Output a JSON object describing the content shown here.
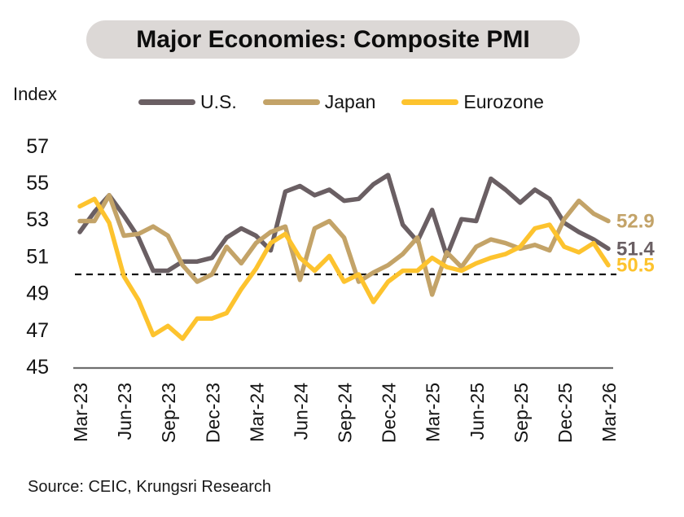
{
  "title": "Major Economies: Composite PMI",
  "y_axis_title": "Index",
  "source": "Source: CEIC, Krungsri Research",
  "colors": {
    "pill_bg": "#dcd8d6",
    "axis_line": "#6f6f6f",
    "threshold_line": "#141414",
    "text": "#141414",
    "us": "#6A5F63",
    "japan": "#C3A368",
    "eurozone": "#FDC32E"
  },
  "chart_data": {
    "type": "line",
    "title": "Major Economies: Composite PMI",
    "x": [
      "Mar-23",
      "Apr-23",
      "May-23",
      "Jun-23",
      "Jul-23",
      "Aug-23",
      "Sep-23",
      "Oct-23",
      "Nov-23",
      "Dec-23",
      "Jan-24",
      "Feb-24",
      "Mar-24",
      "Apr-24",
      "May-24",
      "Jun-24",
      "Jul-24",
      "Aug-24",
      "Sep-24",
      "Oct-24",
      "Nov-24",
      "Dec-24",
      "Jan-25",
      "Feb-25",
      "Mar-25",
      "Apr-25",
      "May-25",
      "Jun-25",
      "Jul-25",
      "Aug-25",
      "Sep-25",
      "Oct-25",
      "Nov-25",
      "Dec-25",
      "Jan-26",
      "Feb-26",
      "Mar-26"
    ],
    "x_tick_step": 3,
    "y_ticks": [
      57,
      55,
      53,
      51,
      49,
      47,
      45
    ],
    "ylim": [
      45,
      57.5
    ],
    "threshold_line": 50,
    "grid": false,
    "legend_position": "top",
    "series": [
      {
        "key": "us",
        "name": "U.S.",
        "color": "#6A5F63",
        "end_label": "51.4",
        "values": [
          52.3,
          53.4,
          54.3,
          53.2,
          52.0,
          50.2,
          50.2,
          50.7,
          50.7,
          50.9,
          52.0,
          52.5,
          52.1,
          51.3,
          54.5,
          54.8,
          54.3,
          54.6,
          54.0,
          54.1,
          54.9,
          55.4,
          52.7,
          51.8,
          53.5,
          51.0,
          53.0,
          52.9,
          55.2,
          54.6,
          53.9,
          54.6,
          54.1,
          52.8,
          52.3,
          51.9,
          51.4
        ]
      },
      {
        "key": "japan",
        "name": "Japan",
        "color": "#C3A368",
        "end_label": "52.9",
        "values": [
          52.9,
          52.9,
          54.3,
          52.1,
          52.2,
          52.6,
          52.1,
          50.5,
          49.6,
          50.0,
          51.5,
          50.6,
          51.7,
          52.3,
          52.6,
          49.7,
          52.5,
          52.9,
          52.0,
          49.6,
          50.1,
          50.5,
          51.1,
          52.0,
          48.9,
          51.2,
          50.4,
          51.5,
          51.9,
          51.7,
          51.4,
          51.6,
          51.3,
          53.0,
          54.0,
          53.3,
          52.9
        ]
      },
      {
        "key": "eurozone",
        "name": "Eurozone",
        "color": "#FDC32E",
        "end_label": "50.5",
        "values": [
          53.7,
          54.1,
          52.8,
          49.9,
          48.6,
          46.7,
          47.2,
          46.5,
          47.6,
          47.6,
          47.9,
          49.2,
          50.3,
          51.7,
          52.2,
          50.9,
          50.2,
          51.0,
          49.6,
          50.0,
          48.5,
          49.6,
          50.2,
          50.2,
          50.9,
          50.4,
          50.2,
          50.6,
          50.9,
          51.1,
          51.5,
          52.5,
          52.7,
          51.5,
          51.2,
          51.7,
          50.5
        ]
      }
    ]
  }
}
